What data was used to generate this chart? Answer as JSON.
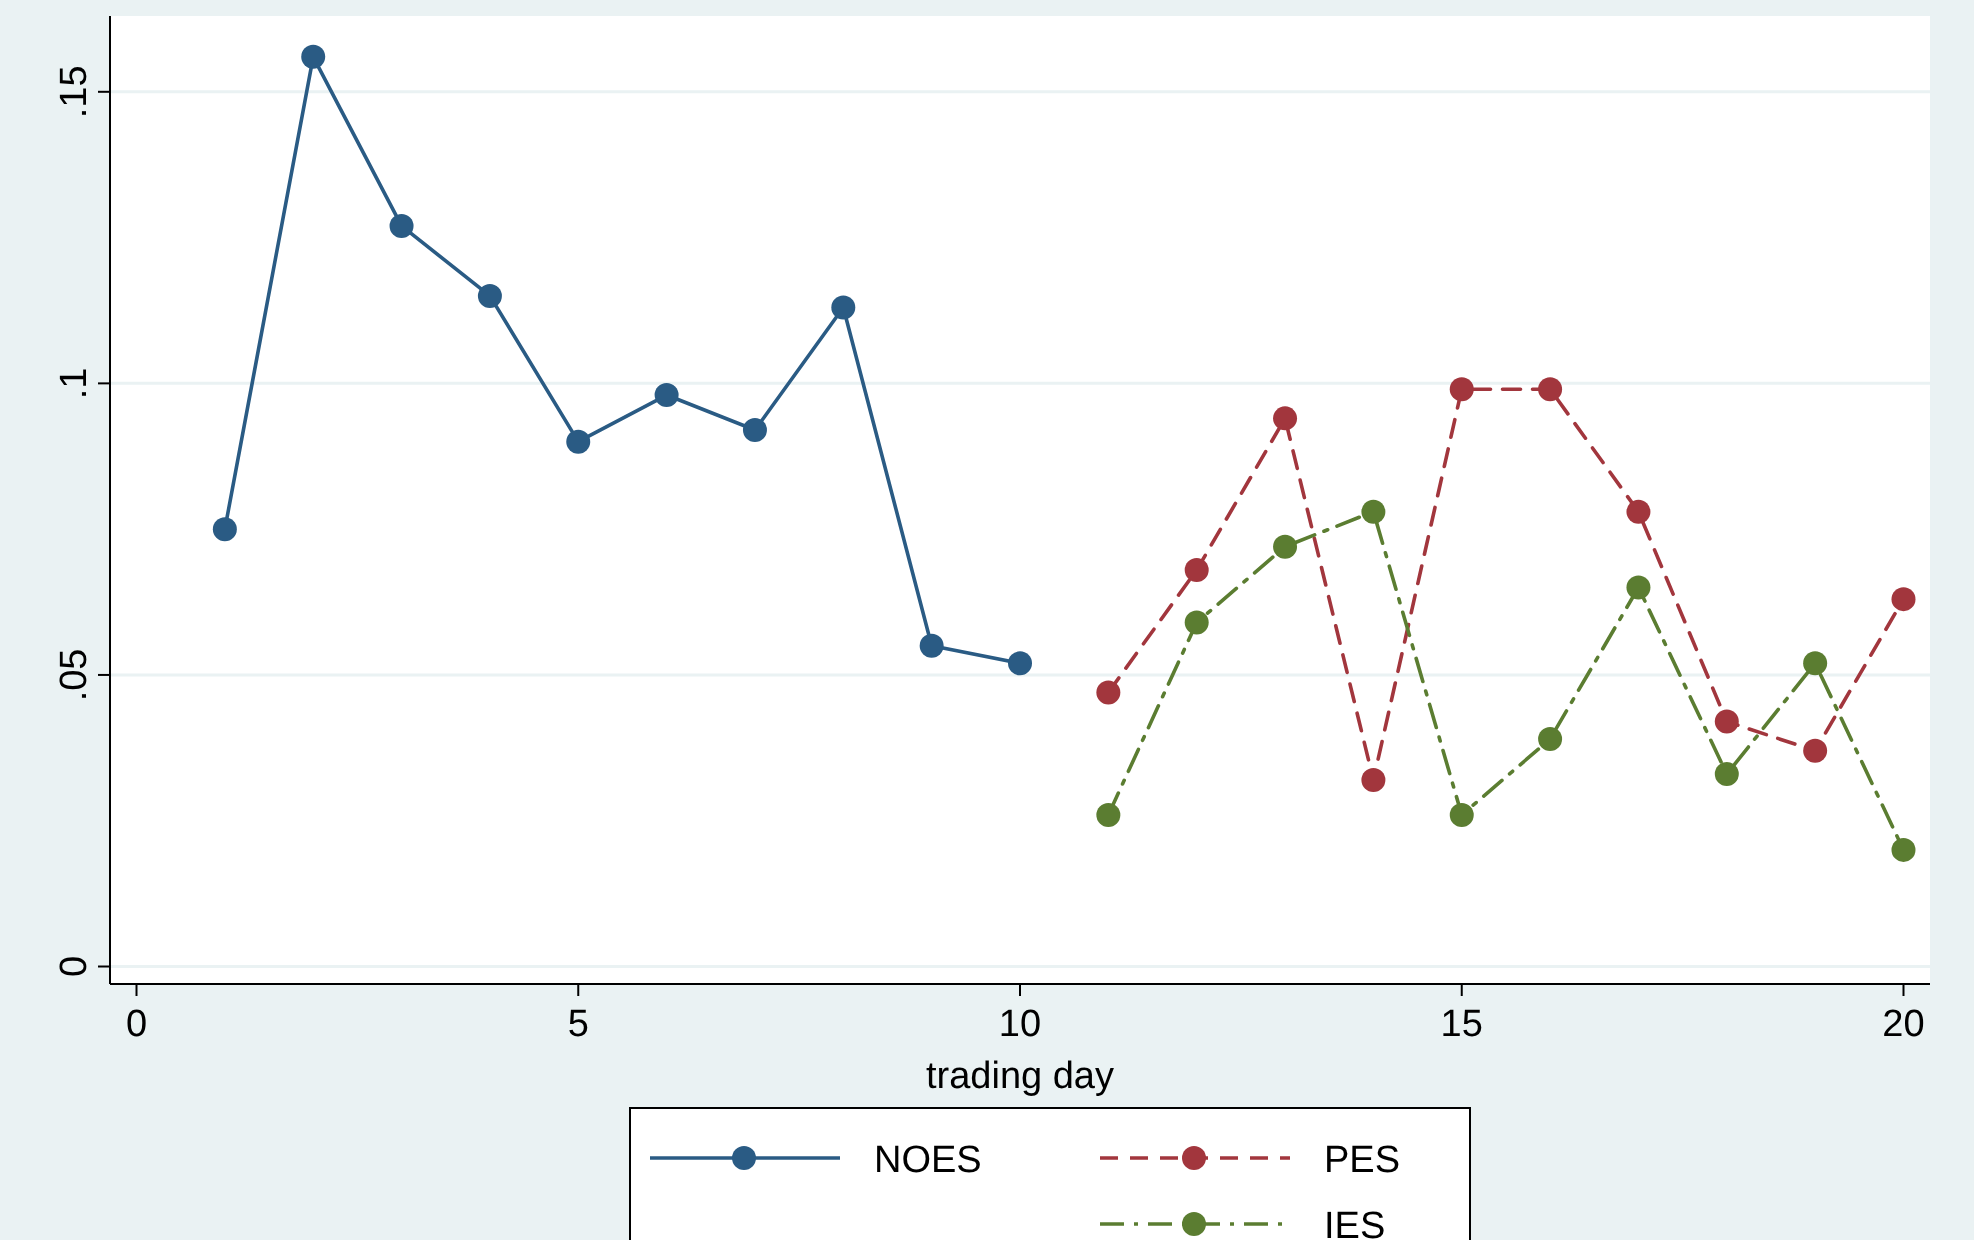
{
  "chart_data": {
    "type": "line",
    "xlabel": "trading day",
    "xlim": [
      -0.3,
      20.3
    ],
    "xticks": [
      0,
      5,
      10,
      15,
      20
    ],
    "ylim": [
      -0.003,
      0.163
    ],
    "yticks": [
      {
        "value": 0,
        "label": "0"
      },
      {
        "value": 0.05,
        "label": ".05"
      },
      {
        "value": 0.1,
        "label": ".1"
      },
      {
        "value": 0.15,
        "label": ".15"
      }
    ],
    "grid": "y",
    "legend": "bottom",
    "marker": "circle",
    "series": [
      {
        "name": "NOES",
        "color": "#2a5b84",
        "line_style": "solid",
        "x": [
          1,
          2,
          3,
          4,
          5,
          6,
          7,
          8,
          9,
          10
        ],
        "values": [
          0.075,
          0.156,
          0.127,
          0.115,
          0.09,
          0.098,
          0.092,
          0.113,
          0.055,
          0.052
        ]
      },
      {
        "name": "PES",
        "color": "#a2363d",
        "line_style": "dashed",
        "x": [
          11,
          12,
          13,
          14,
          15,
          16,
          17,
          18,
          19,
          20
        ],
        "values": [
          0.047,
          0.068,
          0.094,
          0.032,
          0.099,
          0.099,
          0.078,
          0.042,
          0.037,
          0.063
        ]
      },
      {
        "name": "IES",
        "color": "#5b7d31",
        "line_style": "dotted",
        "x": [
          11,
          12,
          13,
          14,
          15,
          16,
          17,
          18,
          19,
          20
        ],
        "values": [
          0.026,
          0.059,
          0.072,
          0.078,
          0.026,
          0.039,
          0.065,
          0.033,
          0.052,
          0.02
        ]
      }
    ]
  }
}
